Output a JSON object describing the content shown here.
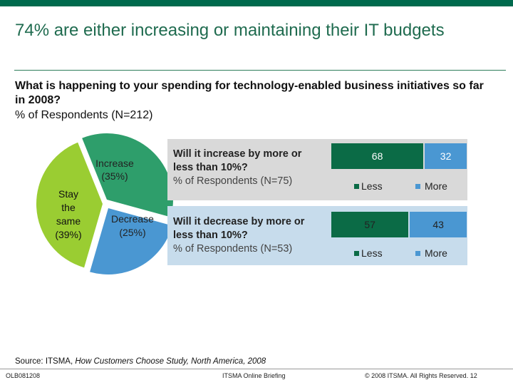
{
  "title": "74% are either increasing or maintaining their IT budgets",
  "question": "What is happening to your spending for technology-enabled business initiatives so far in 2008?",
  "respondents": "% of Respondents (N=212)",
  "colors": {
    "green": "#2E9E6B",
    "lime": "#9ACD32",
    "blue": "#4A97D2",
    "dark_green": "#0B6B46",
    "accent": "#006A4D"
  },
  "chart_data": [
    {
      "type": "pie",
      "slices": [
        {
          "name": "Increase",
          "value": 35,
          "label_line1": "Increase",
          "label_line2": "(35%)"
        },
        {
          "name": "Decrease",
          "value": 25,
          "label_line1": "Decrease",
          "label_line2": "(25%)"
        },
        {
          "name": "Stay the same",
          "value": 39,
          "label_line1": "Stay",
          "label_line2": "the",
          "label_line3": "same",
          "label_line4": "(39%)"
        }
      ]
    },
    {
      "type": "bar",
      "question_bold": "Will it increase by more or less than 10%?",
      "respondents": "% of Respondents (N=75)",
      "series": [
        {
          "name": "Less",
          "value": 68
        },
        {
          "name": "More",
          "value": 32
        }
      ],
      "value_labels": [
        "68",
        "32"
      ],
      "legend": [
        "Less",
        "More"
      ]
    },
    {
      "type": "bar",
      "question_bold": "Will it decrease by more or less than 10%?",
      "respondents": "% of Respondents (N=53)",
      "series": [
        {
          "name": "Less",
          "value": 57
        },
        {
          "name": "More",
          "value": 43
        }
      ],
      "value_labels": [
        "57",
        "43"
      ],
      "legend": [
        "Less",
        "More"
      ]
    }
  ],
  "source": {
    "prefix": "Source: ITSMA, ",
    "italic": "How Customers Choose Study, North America, 2008"
  },
  "footer": {
    "left": "OLB081208",
    "center": "ITSMA Online Briefing",
    "right": "© 2008 ITSMA. All Rights Reserved. 12"
  }
}
